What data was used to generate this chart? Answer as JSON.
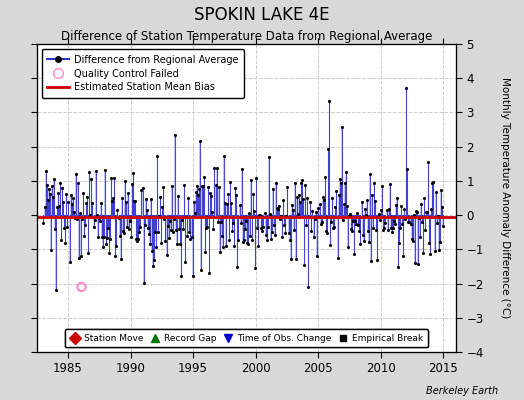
{
  "title": "SPOKIN LAKE 4E",
  "subtitle": "Difference of Station Temperature Data from Regional Average",
  "ylabel": "Monthly Temperature Anomaly Difference (°C)",
  "xlim": [
    1982.5,
    2016.0
  ],
  "ylim": [
    -4,
    5
  ],
  "yticks": [
    -4,
    -3,
    -2,
    -1,
    0,
    1,
    2,
    3,
    4,
    5
  ],
  "xticks": [
    1985,
    1990,
    1995,
    2000,
    2005,
    2010,
    2015
  ],
  "bias_value": -0.05,
  "background_color": "#d8d8d8",
  "plot_bg_color": "#ffffff",
  "line_color": "#3333cc",
  "fill_color": "#aaaaff",
  "dot_color": "#000000",
  "bias_color": "#cc0000",
  "qc_color": "#ff88cc",
  "watermark": "Berkeley Earth",
  "seed": 12345,
  "start_year": 1983,
  "end_year": 2014
}
